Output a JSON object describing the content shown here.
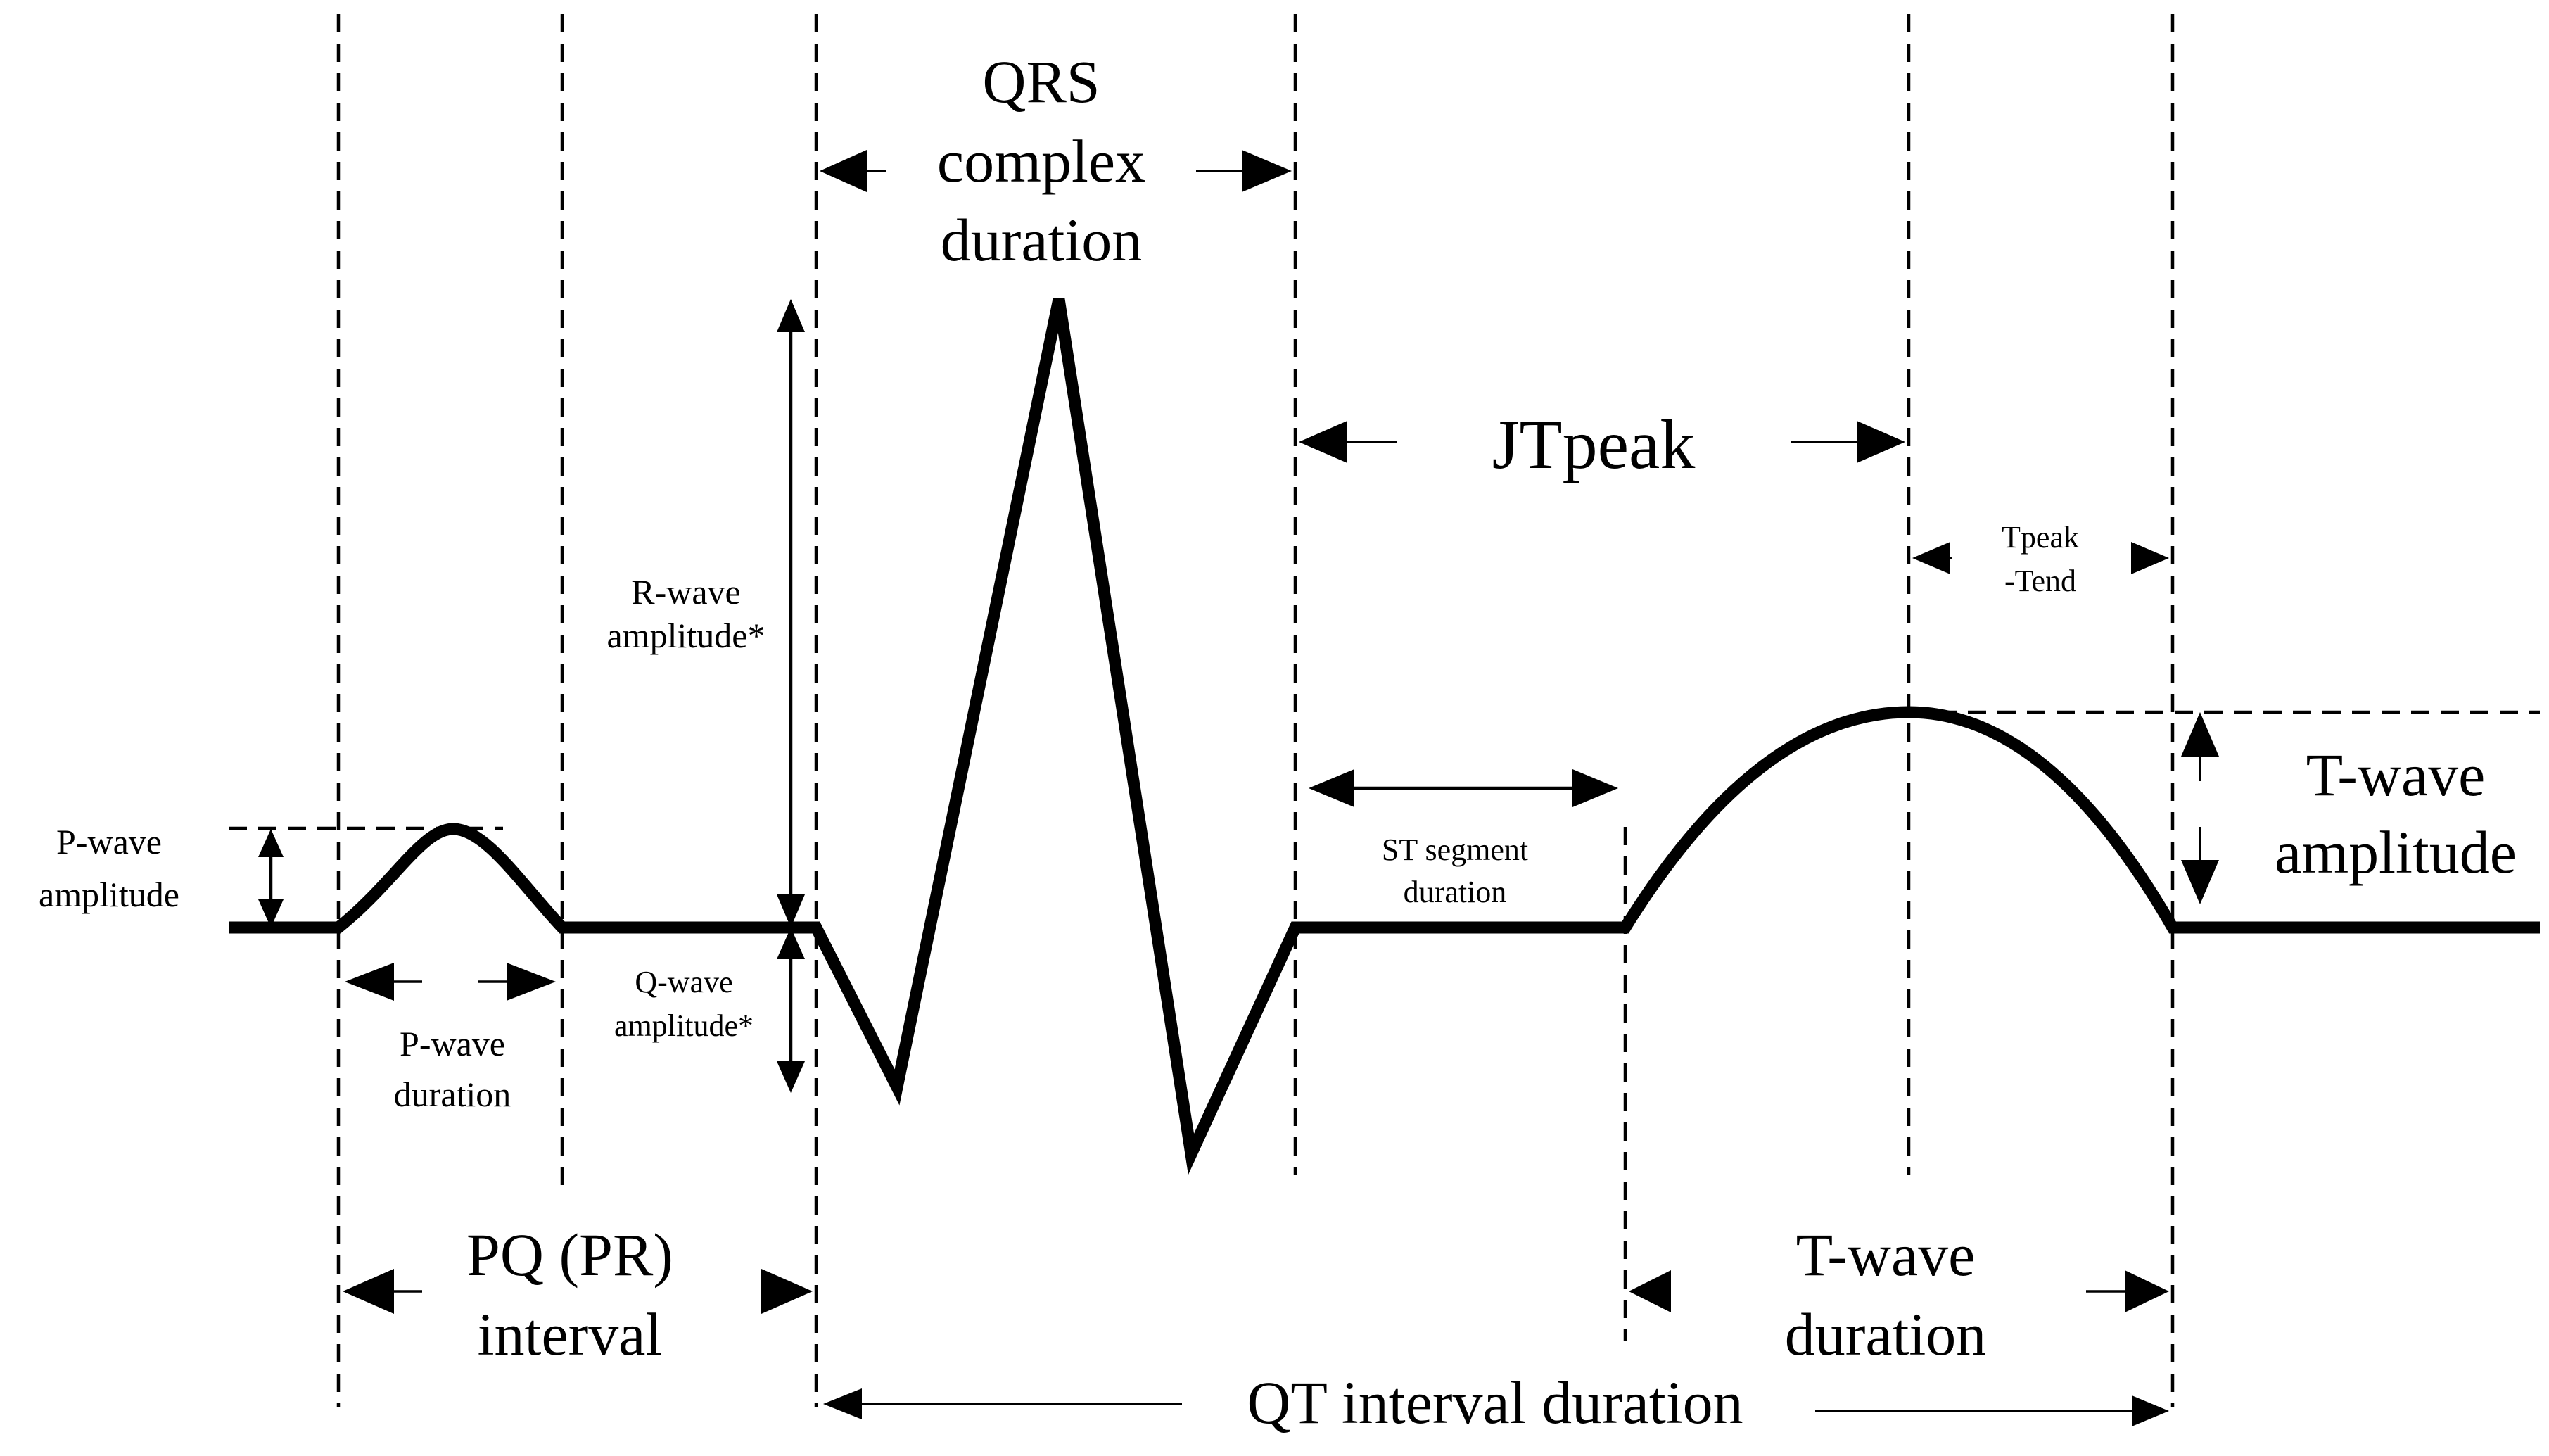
{
  "labels": {
    "p_wave_amplitude_1": "P-wave",
    "p_wave_amplitude_2": "amplitude",
    "p_wave_duration_1": "P-wave",
    "p_wave_duration_2": "duration",
    "r_wave_amplitude_1": "R-wave",
    "r_wave_amplitude_2": "amplitude*",
    "q_wave_amplitude_1": "Q-wave",
    "q_wave_amplitude_2": "amplitude*",
    "qrs_1": "QRS",
    "qrs_2": "complex",
    "qrs_3": "duration",
    "pq_1": "PQ (PR)",
    "pq_2": "interval",
    "jtpeak": "JTpeak",
    "tpeak_tend_1": "Tpeak",
    "tpeak_tend_2": "-Tend",
    "st_1": "ST segment",
    "st_2": "duration",
    "t_wave_amplitude_1": "T-wave",
    "t_wave_amplitude_2": "amplitude",
    "t_wave_duration_1": "T-wave",
    "t_wave_duration_2": "duration",
    "qt": "QT interval duration"
  }
}
